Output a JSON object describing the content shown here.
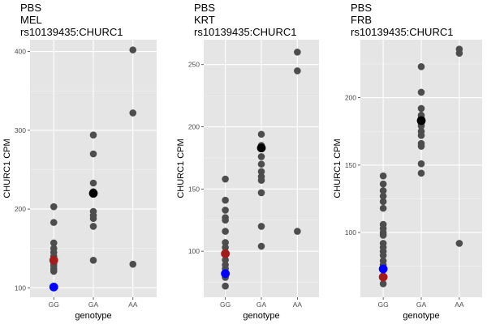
{
  "chart_data": [
    {
      "type": "scatter",
      "title_lines": [
        "PBS",
        "MEL",
        "rs10139435:CHURC1"
      ],
      "xlabel": "genotype",
      "ylabel": "CHURC1 CPM",
      "categories": [
        "GG",
        "GA",
        "AA"
      ],
      "ylim": [
        88,
        415
      ],
      "yticks": [
        100,
        200,
        300,
        400
      ],
      "points": [
        {
          "x": "GG",
          "y": 203
        },
        {
          "x": "GG",
          "y": 183
        },
        {
          "x": "GG",
          "y": 157
        },
        {
          "x": "GG",
          "y": 150
        },
        {
          "x": "GG",
          "y": 145
        },
        {
          "x": "GG",
          "y": 140
        },
        {
          "x": "GG",
          "y": 137
        },
        {
          "x": "GG",
          "y": 131
        },
        {
          "x": "GG",
          "y": 128
        },
        {
          "x": "GG",
          "y": 124
        },
        {
          "x": "GG",
          "y": 121
        },
        {
          "x": "GA",
          "y": 294
        },
        {
          "x": "GA",
          "y": 270
        },
        {
          "x": "GA",
          "y": 233
        },
        {
          "x": "GA",
          "y": 222
        },
        {
          "x": "GA",
          "y": 197
        },
        {
          "x": "GA",
          "y": 192
        },
        {
          "x": "GA",
          "y": 188
        },
        {
          "x": "GA",
          "y": 178
        },
        {
          "x": "GA",
          "y": 135
        },
        {
          "x": "AA",
          "y": 402
        },
        {
          "x": "AA",
          "y": 322
        },
        {
          "x": "AA",
          "y": 130
        }
      ],
      "highlights": [
        {
          "x": "GG",
          "y": 135,
          "color": "#a31c1c"
        },
        {
          "x": "GG",
          "y": 101,
          "color": "#0000ff"
        },
        {
          "x": "GA",
          "y": 220,
          "color": "#000000"
        }
      ]
    },
    {
      "type": "scatter",
      "title_lines": [
        "PBS",
        "KRT",
        "rs10139435:CHURC1"
      ],
      "xlabel": "genotype",
      "ylabel": "CHURC1 CPM",
      "categories": [
        "GG",
        "GA",
        "AA"
      ],
      "ylim": [
        63,
        270
      ],
      "yticks": [
        100,
        150,
        200,
        250
      ],
      "points": [
        {
          "x": "GG",
          "y": 158
        },
        {
          "x": "GG",
          "y": 141
        },
        {
          "x": "GG",
          "y": 133
        },
        {
          "x": "GG",
          "y": 127
        },
        {
          "x": "GG",
          "y": 125
        },
        {
          "x": "GG",
          "y": 116
        },
        {
          "x": "GG",
          "y": 107
        },
        {
          "x": "GG",
          "y": 103
        },
        {
          "x": "GG",
          "y": 99
        },
        {
          "x": "GG",
          "y": 93
        },
        {
          "x": "GG",
          "y": 89
        },
        {
          "x": "GG",
          "y": 86
        },
        {
          "x": "GG",
          "y": 83
        },
        {
          "x": "GG",
          "y": 79
        },
        {
          "x": "GG",
          "y": 72
        },
        {
          "x": "GA",
          "y": 194
        },
        {
          "x": "GA",
          "y": 185
        },
        {
          "x": "GA",
          "y": 176
        },
        {
          "x": "GA",
          "y": 170
        },
        {
          "x": "GA",
          "y": 164
        },
        {
          "x": "GA",
          "y": 160
        },
        {
          "x": "GA",
          "y": 157
        },
        {
          "x": "GA",
          "y": 147
        },
        {
          "x": "GA",
          "y": 120
        },
        {
          "x": "GA",
          "y": 104
        },
        {
          "x": "AA",
          "y": 260
        },
        {
          "x": "AA",
          "y": 245
        },
        {
          "x": "AA",
          "y": 116
        }
      ],
      "highlights": [
        {
          "x": "GG",
          "y": 98,
          "color": "#a31c1c"
        },
        {
          "x": "GG",
          "y": 82,
          "color": "#0000ff"
        },
        {
          "x": "GA",
          "y": 183,
          "color": "#000000"
        }
      ]
    },
    {
      "type": "scatter",
      "title_lines": [
        "PBS",
        "FRB",
        "rs10139435:CHURC1"
      ],
      "xlabel": "genotype",
      "ylabel": "CHURC1 CPM",
      "categories": [
        "GG",
        "GA",
        "AA"
      ],
      "ylim": [
        52,
        243
      ],
      "yticks": [
        100,
        150,
        200
      ],
      "points": [
        {
          "x": "GG",
          "y": 142
        },
        {
          "x": "GG",
          "y": 136
        },
        {
          "x": "GG",
          "y": 131
        },
        {
          "x": "GG",
          "y": 127
        },
        {
          "x": "GG",
          "y": 123
        },
        {
          "x": "GG",
          "y": 118
        },
        {
          "x": "GG",
          "y": 106
        },
        {
          "x": "GG",
          "y": 103
        },
        {
          "x": "GG",
          "y": 100
        },
        {
          "x": "GG",
          "y": 98
        },
        {
          "x": "GG",
          "y": 92
        },
        {
          "x": "GG",
          "y": 89
        },
        {
          "x": "GG",
          "y": 86
        },
        {
          "x": "GG",
          "y": 83
        },
        {
          "x": "GG",
          "y": 79
        },
        {
          "x": "GG",
          "y": 76
        },
        {
          "x": "GG",
          "y": 62
        },
        {
          "x": "GA",
          "y": 223
        },
        {
          "x": "GA",
          "y": 204
        },
        {
          "x": "GA",
          "y": 192
        },
        {
          "x": "GA",
          "y": 187
        },
        {
          "x": "GA",
          "y": 185
        },
        {
          "x": "GA",
          "y": 181
        },
        {
          "x": "GA",
          "y": 179
        },
        {
          "x": "GA",
          "y": 175
        },
        {
          "x": "GA",
          "y": 172
        },
        {
          "x": "GA",
          "y": 166
        },
        {
          "x": "GA",
          "y": 164
        },
        {
          "x": "GA",
          "y": 151
        },
        {
          "x": "GA",
          "y": 144
        },
        {
          "x": "AA",
          "y": 236
        },
        {
          "x": "AA",
          "y": 233
        },
        {
          "x": "AA",
          "y": 92
        }
      ],
      "highlights": [
        {
          "x": "GG",
          "y": 67,
          "color": "#a31c1c"
        },
        {
          "x": "GG",
          "y": 73,
          "color": "#0000ff"
        },
        {
          "x": "GA",
          "y": 183,
          "color": "#000000"
        }
      ]
    }
  ],
  "style": {
    "panel_background": "#e5e5e5",
    "grid_major": "#ffffff",
    "grid_minor": "#f2f2f2",
    "point_color": "#4d4d4d",
    "tick_text_color": "#4d4d4d"
  }
}
